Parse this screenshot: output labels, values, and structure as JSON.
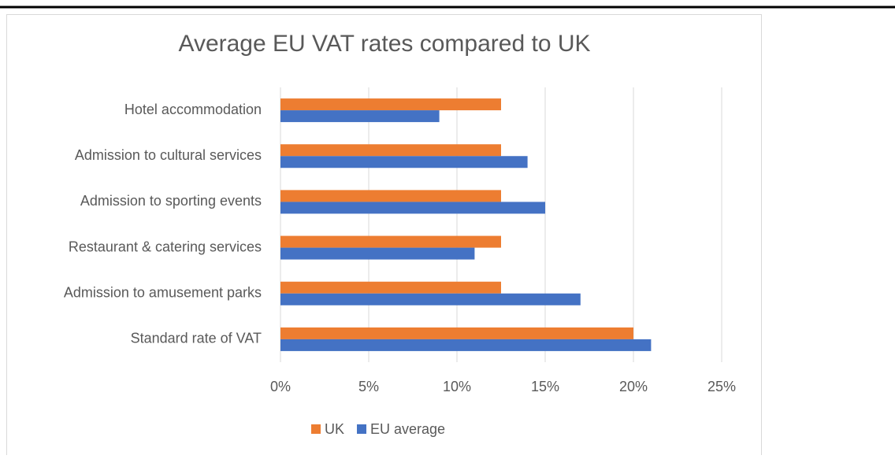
{
  "chart_data": {
    "type": "hbar",
    "title": "Average EU VAT rates compared to UK",
    "categories": [
      "Hotel accommodation",
      "Admission to cultural services",
      "Admission to sporting events",
      "Restaurant & catering services",
      "Admission to amusement parks",
      "Standard rate of VAT"
    ],
    "series": [
      {
        "name": "UK",
        "color": "#ed7d31",
        "values": [
          12.5,
          12.5,
          12.5,
          12.5,
          12.5,
          20
        ]
      },
      {
        "name": "EU average",
        "color": "#4472c4",
        "values": [
          9,
          14,
          15,
          11,
          17,
          21
        ]
      }
    ],
    "xlim": [
      0,
      25
    ],
    "xticks": [
      {
        "value": 0,
        "label": "0%"
      },
      {
        "value": 5,
        "label": "5%"
      },
      {
        "value": 10,
        "label": "10%"
      },
      {
        "value": 15,
        "label": "15%"
      },
      {
        "value": 20,
        "label": "20%"
      },
      {
        "value": 25,
        "label": "25%"
      }
    ],
    "grid": true,
    "legend": "bottom"
  }
}
